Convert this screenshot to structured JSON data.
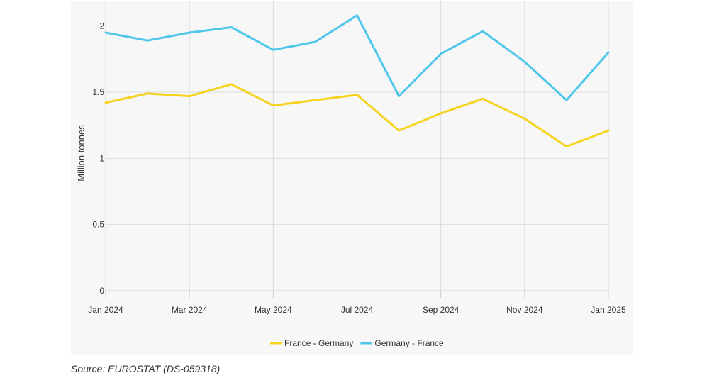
{
  "source": "Source: EUROSTAT (DS-059318)",
  "chart_data": {
    "type": "line",
    "ylabel": "Million tonnes",
    "xlabel": "",
    "ylim": [
      0,
      2.1
    ],
    "y_ticks": [
      0,
      0.5,
      1,
      1.5,
      2
    ],
    "y_tick_labels": [
      "0",
      "0.5",
      "1",
      "1.5",
      "2"
    ],
    "x": [
      "2024-01",
      "2024-02",
      "2024-03",
      "2024-04",
      "2024-05",
      "2024-06",
      "2024-07",
      "2024-08",
      "2024-09",
      "2024-10",
      "2024-11",
      "2024-12",
      "2025-01"
    ],
    "x_tick_labels": [
      "Jan 2024",
      "Mar 2024",
      "May 2024",
      "Jul 2024",
      "Sep 2024",
      "Nov 2024",
      "Jan 2025"
    ],
    "x_tick_indices": [
      0,
      2,
      4,
      6,
      8,
      10,
      12
    ],
    "grid": true,
    "legend_position": "bottom-center",
    "series": [
      {
        "name": "France - Germany",
        "color": "#f5d321",
        "values": [
          1.42,
          1.49,
          1.47,
          1.56,
          1.4,
          1.44,
          1.48,
          1.21,
          1.34,
          1.45,
          1.3,
          1.09,
          1.21
        ]
      },
      {
        "name": "Germany - France",
        "color": "#4fc6ea",
        "values": [
          1.95,
          1.89,
          1.95,
          1.99,
          1.82,
          1.88,
          2.08,
          1.47,
          1.79,
          1.96,
          1.73,
          1.44,
          1.8
        ]
      }
    ]
  }
}
